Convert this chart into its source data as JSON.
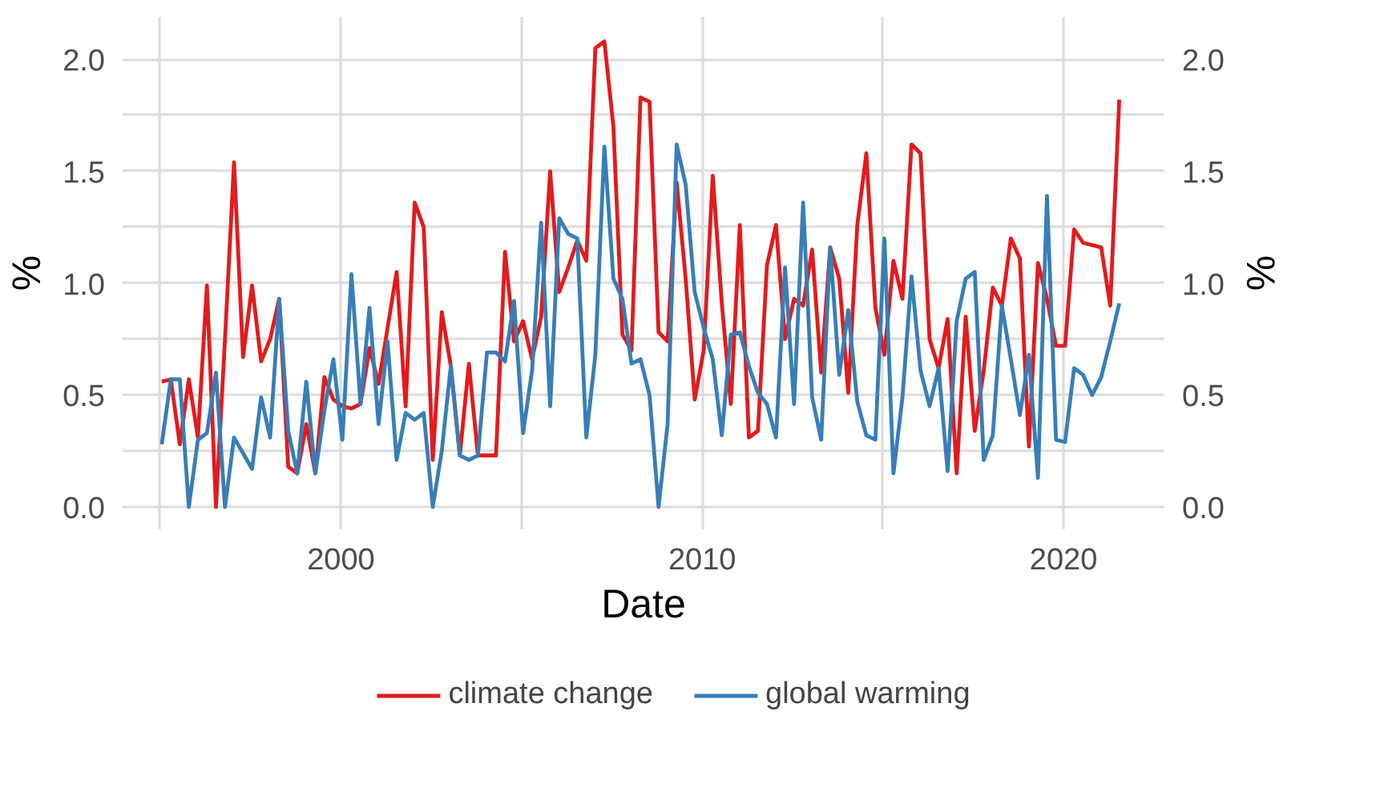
{
  "chart_data": {
    "type": "line",
    "xlabel": "Date",
    "ylabel": "%",
    "y2label": "%",
    "x": [
      "1995-01",
      "1995-04",
      "1995-07",
      "1995-10",
      "1996-01",
      "1996-04",
      "1996-07",
      "1996-10",
      "1997-01",
      "1997-04",
      "1997-07",
      "1997-10",
      "1998-01",
      "1998-04",
      "1998-07",
      "1998-10",
      "1999-01",
      "1999-04",
      "1999-07",
      "1999-10",
      "2000-01",
      "2000-04",
      "2000-07",
      "2000-10",
      "2001-01",
      "2001-04",
      "2001-07",
      "2001-10",
      "2002-01",
      "2002-04",
      "2002-07",
      "2002-10",
      "2003-01",
      "2003-04",
      "2003-07",
      "2003-10",
      "2004-01",
      "2004-04",
      "2004-07",
      "2004-10",
      "2005-01",
      "2005-04",
      "2005-07",
      "2005-10",
      "2006-01",
      "2006-04",
      "2006-07",
      "2006-10",
      "2007-01",
      "2007-04",
      "2007-07",
      "2007-10",
      "2008-01",
      "2008-04",
      "2008-07",
      "2008-10",
      "2009-01",
      "2009-04",
      "2009-07",
      "2009-10",
      "2010-01",
      "2010-04",
      "2010-07",
      "2010-10",
      "2011-01",
      "2011-04",
      "2011-07",
      "2011-10",
      "2012-01",
      "2012-04",
      "2012-07",
      "2012-10",
      "2013-01",
      "2013-04",
      "2013-07",
      "2013-10",
      "2014-01",
      "2014-04",
      "2014-07",
      "2014-10",
      "2015-01",
      "2015-04",
      "2015-07",
      "2015-10",
      "2016-01",
      "2016-04",
      "2016-07",
      "2016-10",
      "2017-01",
      "2017-04",
      "2017-07",
      "2017-10",
      "2018-01",
      "2018-04",
      "2018-07",
      "2018-10",
      "2019-01",
      "2019-04",
      "2019-07",
      "2019-10",
      "2020-01",
      "2020-04",
      "2020-07",
      "2020-10",
      "2021-01",
      "2021-04",
      "2021-07"
    ],
    "series": [
      {
        "name": "climate change",
        "color": "#e41a1c",
        "values": [
          0.56,
          0.57,
          0.28,
          0.57,
          0.31,
          0.99,
          0.0,
          0.75,
          1.54,
          0.67,
          0.99,
          0.65,
          0.75,
          0.93,
          0.18,
          0.15,
          0.37,
          0.15,
          0.58,
          0.48,
          0.45,
          0.44,
          0.46,
          0.71,
          0.55,
          0.8,
          1.05,
          0.45,
          1.36,
          1.25,
          0.21,
          0.87,
          0.63,
          0.23,
          0.64,
          0.23,
          0.23,
          0.23,
          1.14,
          0.74,
          0.83,
          0.66,
          0.85,
          1.5,
          0.96,
          1.07,
          1.19,
          1.1,
          2.05,
          2.08,
          1.7,
          0.77,
          0.7,
          1.83,
          1.81,
          0.78,
          0.74,
          1.45,
          1.02,
          0.48,
          0.7,
          1.48,
          0.91,
          0.46,
          1.26,
          0.31,
          0.34,
          1.08,
          1.26,
          0.75,
          0.93,
          0.9,
          1.15,
          0.6,
          1.16,
          1.02,
          0.51,
          1.26,
          1.58,
          0.89,
          0.68,
          1.1,
          0.93,
          1.62,
          1.58,
          0.75,
          0.62,
          0.84,
          0.15,
          0.85,
          0.34,
          0.61,
          0.98,
          0.9,
          1.2,
          1.11,
          0.27,
          1.09,
          0.93,
          0.72,
          0.72,
          1.24,
          1.18,
          1.17,
          1.16,
          0.9,
          1.82
        ]
      },
      {
        "name": "global warming",
        "color": "#377eb8",
        "values": [
          0.28,
          0.57,
          0.57,
          0.0,
          0.3,
          0.33,
          0.6,
          0.0,
          0.31,
          0.24,
          0.17,
          0.49,
          0.31,
          0.93,
          0.34,
          0.15,
          0.56,
          0.15,
          0.43,
          0.66,
          0.3,
          1.04,
          0.46,
          0.89,
          0.37,
          0.74,
          0.21,
          0.42,
          0.39,
          0.42,
          0.0,
          0.25,
          0.63,
          0.23,
          0.21,
          0.23,
          0.69,
          0.69,
          0.65,
          0.92,
          0.33,
          0.61,
          1.27,
          0.45,
          1.29,
          1.22,
          1.2,
          0.31,
          0.68,
          1.61,
          1.02,
          0.93,
          0.64,
          0.66,
          0.5,
          0.0,
          0.37,
          1.62,
          1.44,
          0.96,
          0.8,
          0.66,
          0.32,
          0.77,
          0.78,
          0.63,
          0.51,
          0.46,
          0.31,
          1.07,
          0.46,
          1.36,
          0.49,
          0.3,
          1.16,
          0.59,
          0.88,
          0.47,
          0.32,
          0.3,
          1.2,
          0.15,
          0.49,
          1.03,
          0.61,
          0.45,
          0.62,
          0.16,
          0.83,
          1.02,
          1.05,
          0.21,
          0.32,
          0.9,
          0.66,
          0.41,
          0.68,
          0.13,
          1.39,
          0.3,
          0.29,
          0.62,
          0.59,
          0.5,
          0.58,
          0.74,
          0.91
        ]
      }
    ],
    "xlim": [
      "1993-12",
      "2022-10"
    ],
    "xticks": [
      {
        "value": "1995",
        "label": null
      },
      {
        "value": "2000",
        "label": "2000"
      },
      {
        "value": "2005",
        "label": null
      },
      {
        "value": "2010",
        "label": "2010"
      },
      {
        "value": "2015",
        "label": null
      },
      {
        "value": "2020",
        "label": "2020"
      }
    ],
    "ylim": [
      -0.1,
      2.19
    ],
    "yticks": [
      {
        "value": 0,
        "label": "0.0"
      },
      {
        "value": 0.25,
        "label": null
      },
      {
        "value": 0.5,
        "label": "0.5"
      },
      {
        "value": 0.75,
        "label": null
      },
      {
        "value": 1,
        "label": "1.0"
      },
      {
        "value": 1.25,
        "label": null
      },
      {
        "value": 1.5,
        "label": "1.5"
      },
      {
        "value": 1.75,
        "label": null
      },
      {
        "value": 2,
        "label": "2.0"
      }
    ],
    "y2lim": [
      -0.1,
      2.19
    ],
    "y2ticks": [
      {
        "value": 0,
        "label": "0.0"
      },
      {
        "value": 0.25,
        "label": null
      },
      {
        "value": 0.5,
        "label": "0.5"
      },
      {
        "value": 0.75,
        "label": null
      },
      {
        "value": 1,
        "label": "1.0"
      },
      {
        "value": 1.25,
        "label": null
      },
      {
        "value": 1.5,
        "label": "1.5"
      },
      {
        "value": 1.75,
        "label": null
      },
      {
        "value": 2,
        "label": "2.0"
      }
    ],
    "grid": true,
    "legend": "bottom",
    "line_style": "solid"
  }
}
